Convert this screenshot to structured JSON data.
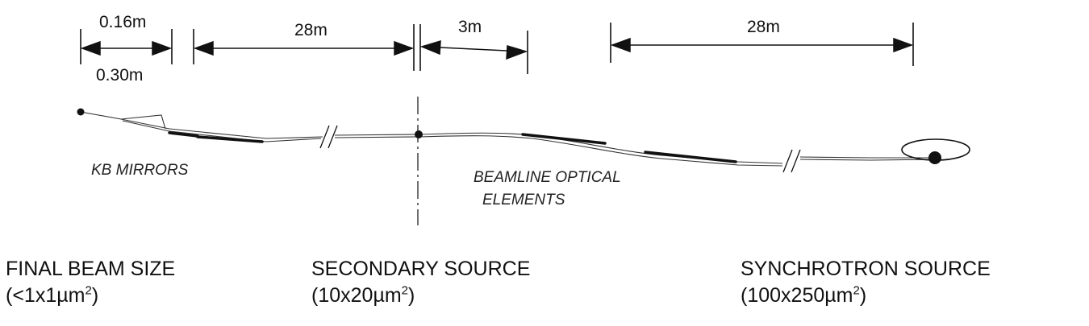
{
  "dimensions": {
    "kb_focal": "0.16m",
    "kb_length": "0.30m",
    "kb_to_secondary": "28m",
    "secondary_gap": "3m",
    "optics_to_source": "28m"
  },
  "labels": {
    "kb_mirrors": "KB MIRRORS",
    "beamline_line1": "BEAMLINE OPTICAL",
    "beamline_line2": "ELEMENTS"
  },
  "captions": {
    "final": {
      "title": "FINAL BEAM SIZE",
      "size_prefix": "(<1x1µm",
      "size_exp": "2",
      "size_suffix": ")"
    },
    "secondary": {
      "title": "SECONDARY SOURCE",
      "size_prefix": "(10x20µm",
      "size_exp": "2",
      "size_suffix": ")"
    },
    "synchrotron": {
      "title": "SYNCHROTRON SOURCE",
      "size_prefix": "(100x250µm",
      "size_exp": "2",
      "size_suffix": ")"
    }
  }
}
